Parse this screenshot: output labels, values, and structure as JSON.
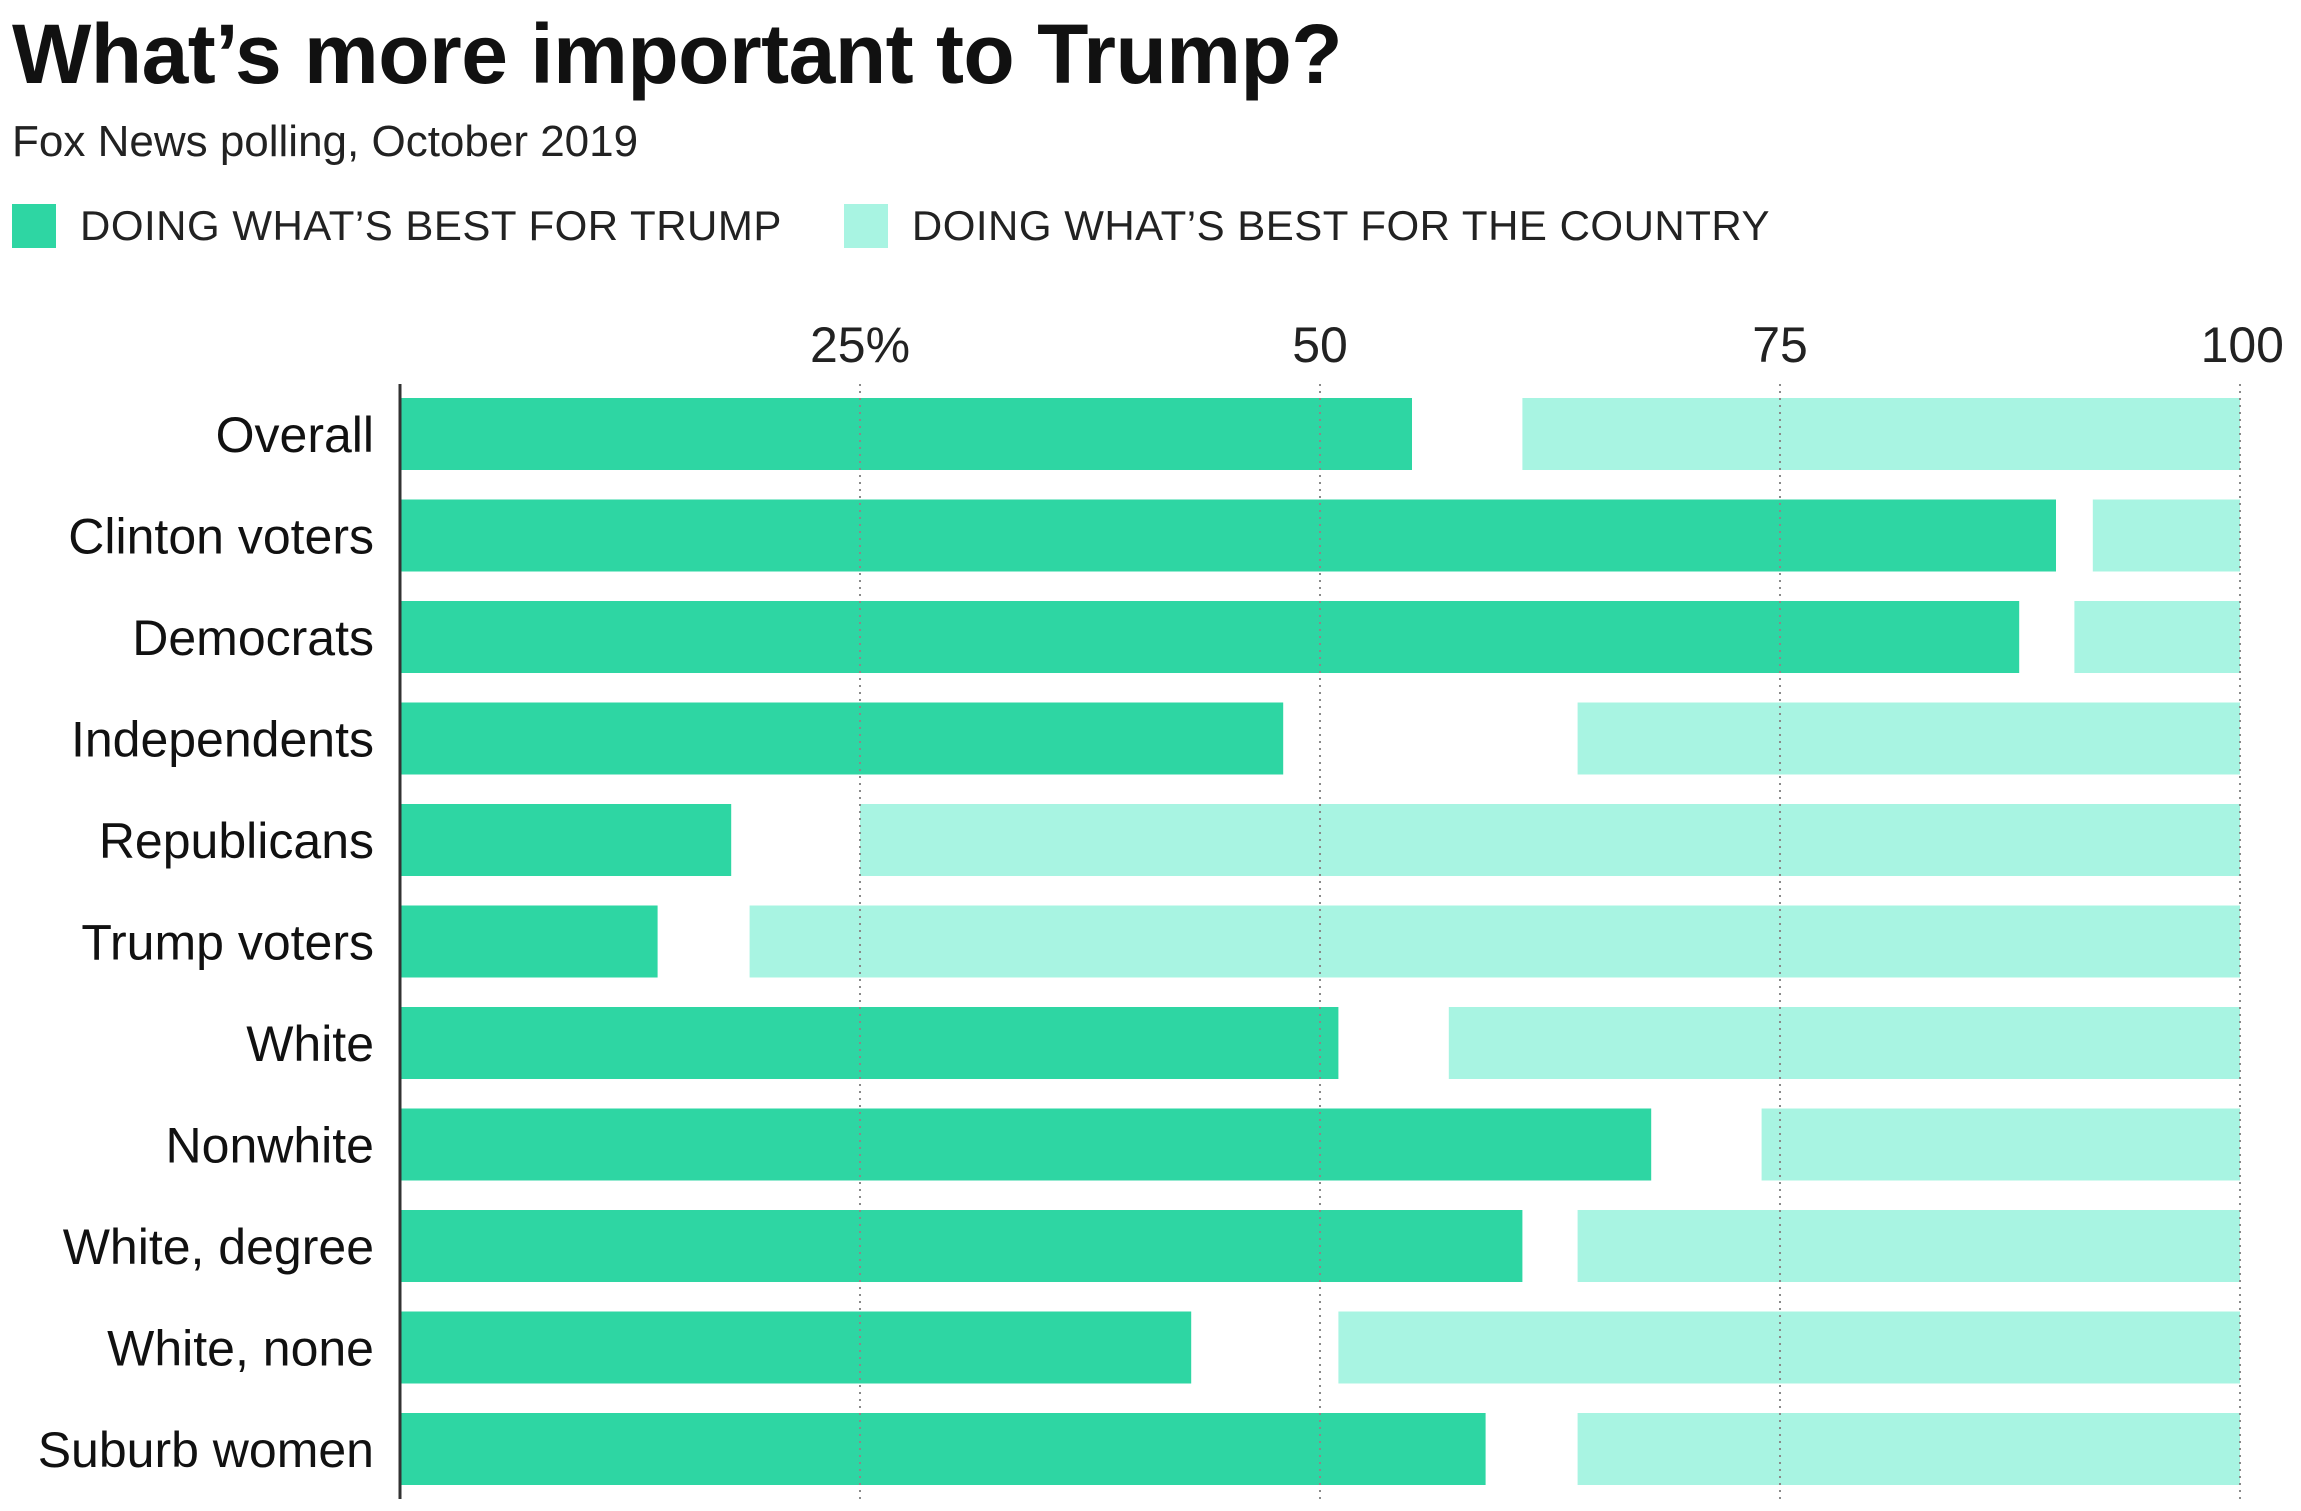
{
  "chart_data": {
    "type": "bar",
    "stacking": "diverging-with-gap",
    "title": "What’s more important to Trump?",
    "subtitle": "Fox News polling, October 2019",
    "xlim": [
      0,
      100
    ],
    "ticks": [
      {
        "value": 25,
        "label": "25%"
      },
      {
        "value": 50,
        "label": "50"
      },
      {
        "value": 75,
        "label": "75"
      },
      {
        "value": 100,
        "label": "100"
      }
    ],
    "grid": "vertical dotted",
    "legend_position": "top-left",
    "categories": [
      "Overall",
      "Clinton voters",
      "Democrats",
      "Independents",
      "Republicans",
      "Trump voters",
      "White",
      "Nonwhite",
      "White, degree",
      "White, none",
      "Suburb women"
    ],
    "series": [
      {
        "name": "DOING WHAT’S BEST FOR TRUMP",
        "color": "#2ed6a3",
        "anchor": "left",
        "values": [
          55,
          90,
          88,
          48,
          18,
          14,
          51,
          68,
          61,
          43,
          59
        ]
      },
      {
        "name": "DOING WHAT’S BEST FOR THE COUNTRY",
        "color": "#a8f4e2",
        "anchor": "right",
        "values": [
          39,
          8,
          9,
          36,
          75,
          81,
          43,
          26,
          36,
          49,
          36
        ]
      }
    ]
  }
}
